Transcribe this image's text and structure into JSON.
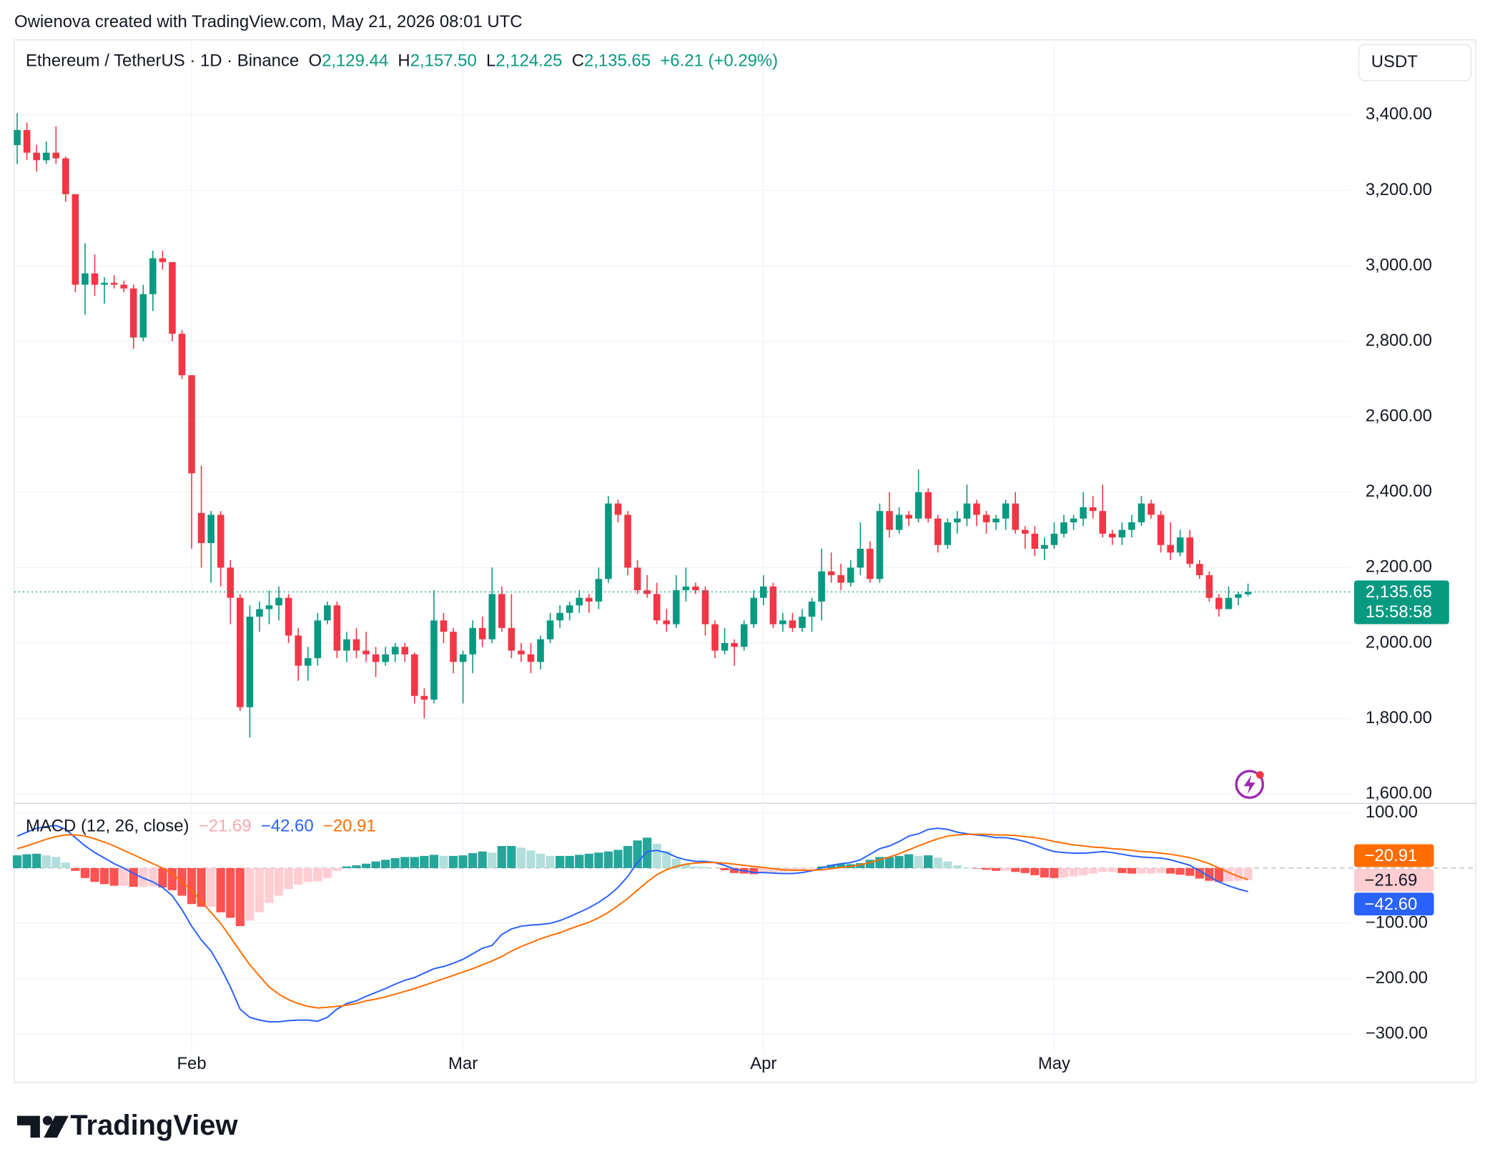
{
  "header": {
    "attribution": "Owienova created with TradingView.com, May 21, 2026 08:01 UTC"
  },
  "brand": "TradingView",
  "chart_data": [
    {
      "type": "candlestick",
      "title": "Ethereum / TetherUS · 1D · Binance",
      "ohlc_letters": [
        "O",
        "H",
        "L",
        "C"
      ],
      "ohlc": [
        {
          "value": 2129.44,
          "label": "2,129.44"
        },
        {
          "value": 2157.5,
          "label": "2,157.50"
        },
        {
          "value": 2124.25,
          "label": "2,124.25"
        },
        {
          "value": 2135.65,
          "label": "2,135.65"
        }
      ],
      "change": {
        "value": 6.21,
        "label": "+6.21"
      },
      "change_pct": {
        "value": 0.29,
        "label": "(+0.29%)"
      },
      "currency": "USDT",
      "last_price": {
        "value": 2135.65,
        "label": "2,135.65"
      },
      "countdown": "15:58:58",
      "up_color": "#089981",
      "down_color": "#f23645",
      "grid": true,
      "xlim": [
        -0.3,
        137.65
      ],
      "xticks": [
        {
          "value": 18,
          "label": "Feb"
        },
        {
          "value": 46,
          "label": "Mar"
        },
        {
          "value": 77,
          "label": "Apr"
        },
        {
          "value": 107,
          "label": "May"
        }
      ],
      "ylim": [
        1575,
        3599
      ],
      "yticks": [
        {
          "value": 1600,
          "label": "1,600.00"
        },
        {
          "value": 1800,
          "label": "1,800.00"
        },
        {
          "value": 2000,
          "label": "2,000.00"
        },
        {
          "value": 2200,
          "label": "2,200.00"
        },
        {
          "value": 2400,
          "label": "2,400.00"
        },
        {
          "value": 2600,
          "label": "2,600.00"
        },
        {
          "value": 2800,
          "label": "2,800.00"
        },
        {
          "value": 3000,
          "label": "3,000.00"
        },
        {
          "value": 3200,
          "label": "3,200.00"
        },
        {
          "value": 3400,
          "label": "3,400.00"
        }
      ],
      "open": [
        3320,
        3360,
        3300,
        3280,
        3300,
        3285,
        3190,
        2950,
        2980,
        2950,
        2955,
        2950,
        2940,
        2810,
        2925,
        3020,
        3010,
        2820,
        2710,
        2345,
        2265,
        2340,
        2200,
        2120,
        1830,
        2070,
        2090,
        2100,
        2120,
        2020,
        1940,
        1960,
        2060,
        2100,
        1980,
        2010,
        1980,
        1970,
        1950,
        1970,
        1990,
        1970,
        1860,
        1850,
        2060,
        2030,
        1950,
        1970,
        2040,
        2010,
        2130,
        2040,
        1980,
        1970,
        1950,
        2010,
        2060,
        2080,
        2100,
        2120,
        2110,
        2170,
        2370,
        2340,
        2200,
        2140,
        2130,
        2060,
        2050,
        2140,
        2150,
        2140,
        2050,
        1980,
        2000,
        1990,
        2050,
        2120,
        2150,
        2050,
        2060,
        2040,
        2070,
        2110,
        2190,
        2180,
        2160,
        2200,
        2250,
        2170,
        2350,
        2300,
        2340,
        2330,
        2400,
        2330,
        2260,
        2320,
        2330,
        2370,
        2340,
        2320,
        2330,
        2370,
        2300,
        2290,
        2250,
        2260,
        2290,
        2320,
        2330,
        2360,
        2350,
        2290,
        2280,
        2300,
        2320,
        2370,
        2340,
        2260,
        2240,
        2280,
        2210,
        2180,
        2120,
        2090,
        2120,
        2129.44
      ],
      "high": [
        3405,
        3380,
        3320,
        3330,
        3370,
        3290,
        3190,
        3060,
        3030,
        2970,
        2975,
        2960,
        2950,
        2950,
        3040,
        3040,
        3010,
        2830,
        2710,
        2470,
        2350,
        2350,
        2220,
        2130,
        2100,
        2110,
        2140,
        2150,
        2130,
        2040,
        1990,
        2080,
        2110,
        2110,
        2030,
        2040,
        2030,
        1990,
        1990,
        2000,
        2000,
        1975,
        1880,
        2140,
        2080,
        2040,
        1980,
        2060,
        2070,
        2200,
        2150,
        2130,
        2000,
        2000,
        2020,
        2080,
        2100,
        2110,
        2140,
        2130,
        2200,
        2390,
        2380,
        2350,
        2220,
        2180,
        2160,
        2090,
        2180,
        2200,
        2160,
        2150,
        2060,
        2040,
        2010,
        2060,
        2140,
        2180,
        2160,
        2080,
        2080,
        2090,
        2120,
        2250,
        2240,
        2210,
        2220,
        2320,
        2270,
        2370,
        2400,
        2360,
        2350,
        2460,
        2410,
        2340,
        2330,
        2350,
        2420,
        2380,
        2350,
        2340,
        2380,
        2400,
        2310,
        2310,
        2280,
        2320,
        2340,
        2340,
        2400,
        2390,
        2420,
        2300,
        2320,
        2340,
        2390,
        2380,
        2350,
        2320,
        2300,
        2300,
        2220,
        2190,
        2130,
        2150,
        2135,
        2157.5
      ],
      "low": [
        3270,
        3280,
        3250,
        3270,
        3270,
        3170,
        2930,
        2870,
        2920,
        2900,
        2940,
        2930,
        2780,
        2800,
        2880,
        2990,
        2800,
        2700,
        2250,
        2200,
        2160,
        2150,
        2050,
        1820,
        1750,
        2030,
        2050,
        2060,
        2000,
        1900,
        1900,
        1940,
        2050,
        1960,
        1950,
        1960,
        1950,
        1910,
        1940,
        1950,
        1950,
        1840,
        1800,
        1840,
        2000,
        1920,
        1840,
        1920,
        1990,
        2000,
        2030,
        1960,
        1950,
        1920,
        1930,
        2000,
        2040,
        2060,
        2080,
        2080,
        2090,
        2160,
        2320,
        2180,
        2130,
        2120,
        2050,
        2030,
        2040,
        2110,
        2130,
        2020,
        1960,
        1970,
        1940,
        1980,
        2040,
        2100,
        2040,
        2030,
        2030,
        2030,
        2030,
        2060,
        2160,
        2140,
        2150,
        2180,
        2160,
        2160,
        2280,
        2290,
        2310,
        2320,
        2320,
        2240,
        2250,
        2290,
        2310,
        2310,
        2290,
        2300,
        2300,
        2290,
        2250,
        2230,
        2220,
        2250,
        2280,
        2300,
        2310,
        2330,
        2280,
        2260,
        2260,
        2280,
        2310,
        2330,
        2240,
        2220,
        2230,
        2200,
        2170,
        2110,
        2070,
        2090,
        2100,
        2124.25
      ],
      "close": [
        3360,
        3300,
        3280,
        3300,
        3285,
        3190,
        2950,
        2980,
        2950,
        2955,
        2950,
        2940,
        2810,
        2925,
        3020,
        3010,
        2820,
        2710,
        2450,
        2265,
        2340,
        2200,
        2120,
        1830,
        2070,
        2090,
        2100,
        2120,
        2020,
        1940,
        1960,
        2060,
        2100,
        1980,
        2010,
        1980,
        1970,
        1950,
        1970,
        1990,
        1970,
        1860,
        1850,
        2060,
        2030,
        1950,
        1970,
        2040,
        2010,
        2130,
        2040,
        1980,
        1970,
        1950,
        2010,
        2060,
        2080,
        2100,
        2120,
        2110,
        2170,
        2370,
        2340,
        2200,
        2140,
        2130,
        2060,
        2050,
        2140,
        2150,
        2140,
        2050,
        1980,
        2000,
        1990,
        2050,
        2120,
        2150,
        2050,
        2060,
        2040,
        2070,
        2110,
        2190,
        2180,
        2160,
        2200,
        2250,
        2170,
        2350,
        2300,
        2340,
        2330,
        2400,
        2330,
        2260,
        2320,
        2330,
        2370,
        2340,
        2320,
        2330,
        2370,
        2300,
        2290,
        2250,
        2260,
        2290,
        2320,
        2330,
        2360,
        2350,
        2290,
        2280,
        2300,
        2320,
        2370,
        2340,
        2260,
        2240,
        2280,
        2210,
        2180,
        2120,
        2090,
        2120,
        2129.44,
        2135.65
      ]
    },
    {
      "type": "macd",
      "title": "MACD (12, 26, close)",
      "ylim": [
        -333,
        117
      ],
      "baseline": 0,
      "yticks": [
        {
          "value": 100,
          "label": "100.00"
        },
        {
          "value": -100,
          "label": "−100.00"
        },
        {
          "value": -200,
          "label": "−200.00"
        },
        {
          "value": -300,
          "label": "−300.00"
        }
      ],
      "histogram": {
        "colors": [
          "#26a69a",
          "#b2dfdb",
          "#ffcdd2",
          "#ff5252"
        ],
        "legend_label": "−21.69",
        "label_color": "#f7a9b0",
        "values": [
          23,
          25,
          26,
          23,
          20,
          10,
          -5,
          -18,
          -25,
          -29,
          -32,
          -32,
          -34,
          -34,
          -33,
          -35,
          -40,
          -50,
          -65,
          -70,
          -70,
          -80,
          -90,
          -105,
          -95,
          -80,
          -63,
          -50,
          -38,
          -30,
          -25,
          -24,
          -18,
          -5,
          3,
          5,
          8,
          12,
          15,
          18,
          20,
          20,
          22,
          24,
          22,
          22,
          23,
          27,
          30,
          28,
          40,
          40,
          37,
          32,
          26,
          22,
          22,
          22,
          24,
          26,
          28,
          30,
          33,
          40,
          50,
          55,
          44,
          31,
          17,
          8,
          3,
          2,
          0,
          -4,
          -9,
          -10,
          -11,
          -9,
          -8,
          -7,
          -6,
          -4,
          -1,
          3,
          6,
          7,
          7,
          9,
          15,
          20,
          20,
          22,
          25,
          22,
          23,
          19,
          12,
          5,
          1,
          -1,
          -3,
          -5,
          -5,
          -7,
          -9,
          -13,
          -17,
          -18,
          -17,
          -15,
          -13,
          -10,
          -7,
          -7,
          -9,
          -10,
          -10,
          -10,
          -9,
          -10,
          -12,
          -14,
          -19,
          -23,
          -25,
          -24,
          -23,
          -21.69
        ]
      },
      "series": [
        {
          "color": "#2962ff",
          "legend_label": "−42.60",
          "values": [
            58,
            65,
            72,
            75,
            77,
            70,
            55,
            40,
            28,
            18,
            8,
            0,
            -10,
            -18,
            -25,
            -35,
            -50,
            -75,
            -105,
            -130,
            -150,
            -180,
            -215,
            -255,
            -270,
            -275,
            -278,
            -278,
            -276,
            -275,
            -275,
            -277,
            -270,
            -255,
            -245,
            -240,
            -232,
            -225,
            -218,
            -210,
            -203,
            -198,
            -190,
            -182,
            -178,
            -172,
            -165,
            -155,
            -145,
            -140,
            -120,
            -110,
            -105,
            -103,
            -102,
            -100,
            -95,
            -88,
            -80,
            -72,
            -62,
            -50,
            -35,
            -15,
            10,
            30,
            32,
            28,
            20,
            15,
            12,
            12,
            10,
            5,
            -2,
            -5,
            -8,
            -8,
            -9,
            -10,
            -10,
            -8,
            -5,
            0,
            5,
            8,
            10,
            15,
            25,
            35,
            40,
            48,
            58,
            62,
            70,
            72,
            70,
            65,
            62,
            60,
            58,
            55,
            55,
            52,
            48,
            42,
            35,
            30,
            28,
            27,
            27,
            28,
            30,
            28,
            25,
            22,
            20,
            19,
            18,
            15,
            10,
            5,
            -5,
            -15,
            -25,
            -32,
            -38,
            -42.6
          ]
        },
        {
          "color": "#ff6d00",
          "legend_label": "−20.91",
          "values": [
            35,
            40,
            46,
            52,
            57,
            60,
            60,
            58,
            53,
            47,
            40,
            32,
            24,
            16,
            8,
            0,
            -10,
            -25,
            -40,
            -60,
            -80,
            -100,
            -125,
            -150,
            -175,
            -195,
            -215,
            -228,
            -238,
            -245,
            -250,
            -253,
            -252,
            -250,
            -248,
            -245,
            -240,
            -237,
            -233,
            -228,
            -223,
            -218,
            -212,
            -206,
            -200,
            -194,
            -188,
            -182,
            -175,
            -168,
            -160,
            -150,
            -142,
            -135,
            -128,
            -122,
            -117,
            -110,
            -104,
            -98,
            -90,
            -80,
            -68,
            -55,
            -40,
            -25,
            -12,
            -3,
            3,
            7,
            9,
            10,
            10,
            9,
            7,
            5,
            3,
            1,
            -1,
            -3,
            -4,
            -4,
            -4,
            -3,
            -1,
            1,
            3,
            6,
            10,
            15,
            20,
            26,
            33,
            40,
            47,
            53,
            58,
            60,
            61,
            61,
            61,
            60,
            60,
            59,
            57,
            55,
            52,
            48,
            45,
            42,
            40,
            38,
            37,
            35,
            34,
            32,
            30,
            29,
            27,
            25,
            22,
            19,
            14,
            8,
            0,
            -8,
            -15,
            -20.91
          ]
        }
      ]
    }
  ]
}
